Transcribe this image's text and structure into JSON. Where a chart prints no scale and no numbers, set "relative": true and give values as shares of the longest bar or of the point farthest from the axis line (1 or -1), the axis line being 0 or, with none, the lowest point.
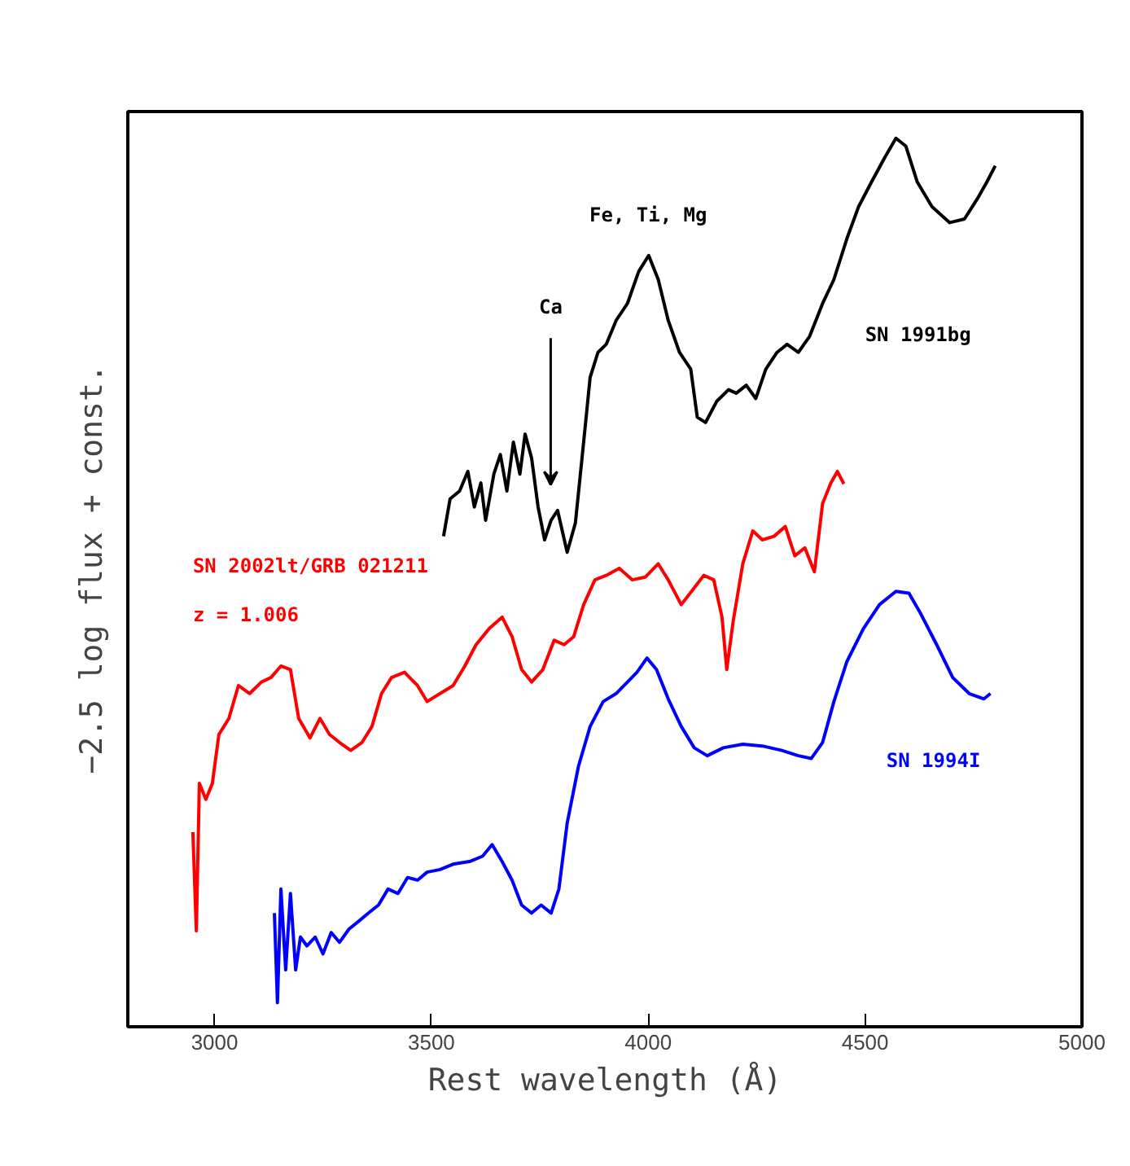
{
  "chart_data": {
    "type": "line",
    "relative": true,
    "xlabel": "Rest wavelength (Å)",
    "ylabel": "−2.5 log flux + const.",
    "xlim": [
      2800,
      5000
    ],
    "xticks": [
      3000,
      3500,
      4000,
      4500,
      5000
    ],
    "grid": false,
    "marker": "none",
    "line_style": "solid",
    "annotations": [
      "Fe, Ti, Mg",
      "Ca",
      "z = 1.006"
    ],
    "series": [
      {
        "name": "SN 1991bg",
        "color": "#000000",
        "x": [
          3528,
          3543,
          3565,
          3584,
          3599,
          3614,
          3625,
          3644,
          3659,
          3674,
          3689,
          3704,
          3716,
          3731,
          3746,
          3761,
          3776,
          3791,
          3813,
          3832,
          3851,
          3866,
          3884,
          3903,
          3926,
          3952,
          3978,
          4001,
          4023,
          4046,
          4072,
          4098,
          4113,
          4132,
          4158,
          4185,
          4203,
          4226,
          4248,
          4271,
          4297,
          4320,
          4346,
          4372,
          4402,
          4428,
          4458,
          4485,
          4515,
          4545,
          4571,
          4594,
          4620,
          4654,
          4695,
          4729,
          4759,
          4781,
          4800
        ],
        "values": [
          0.552,
          0.594,
          0.603,
          0.625,
          0.585,
          0.612,
          0.57,
          0.622,
          0.644,
          0.603,
          0.658,
          0.622,
          0.667,
          0.64,
          0.585,
          0.548,
          0.57,
          0.581,
          0.534,
          0.567,
          0.658,
          0.731,
          0.759,
          0.768,
          0.795,
          0.814,
          0.85,
          0.868,
          0.841,
          0.795,
          0.759,
          0.74,
          0.686,
          0.68,
          0.704,
          0.717,
          0.713,
          0.722,
          0.707,
          0.74,
          0.759,
          0.768,
          0.759,
          0.777,
          0.814,
          0.841,
          0.887,
          0.923,
          0.951,
          0.978,
          1.0,
          0.991,
          0.951,
          0.923,
          0.905,
          0.909,
          0.932,
          0.951,
          0.969
        ]
      },
      {
        "name": "SN 2002lt/GRB 021211",
        "color": "#ff0000",
        "x": [
          2950,
          2958,
          2965,
          2980,
          2995,
          3010,
          3033,
          3055,
          3081,
          3108,
          3130,
          3153,
          3175,
          3194,
          3220,
          3243,
          3265,
          3288,
          3314,
          3340,
          3363,
          3385,
          3408,
          3438,
          3468,
          3490,
          3520,
          3550,
          3577,
          3603,
          3633,
          3663,
          3686,
          3708,
          3731,
          3757,
          3783,
          3806,
          3828,
          3851,
          3877,
          3903,
          3933,
          3963,
          3993,
          4023,
          4046,
          4076,
          4106,
          4128,
          4151,
          4170,
          4181,
          4196,
          4218,
          4241,
          4263,
          4290,
          4316,
          4338,
          4361,
          4383,
          4402,
          4421,
          4436,
          4451
        ],
        "values": [
          0.219,
          0.108,
          0.274,
          0.256,
          0.274,
          0.329,
          0.347,
          0.384,
          0.375,
          0.388,
          0.393,
          0.406,
          0.402,
          0.347,
          0.325,
          0.347,
          0.329,
          0.32,
          0.311,
          0.32,
          0.338,
          0.375,
          0.393,
          0.399,
          0.384,
          0.366,
          0.375,
          0.384,
          0.406,
          0.43,
          0.448,
          0.461,
          0.439,
          0.402,
          0.388,
          0.402,
          0.435,
          0.43,
          0.439,
          0.475,
          0.503,
          0.508,
          0.516,
          0.503,
          0.506,
          0.521,
          0.503,
          0.475,
          0.494,
          0.508,
          0.503,
          0.461,
          0.402,
          0.457,
          0.521,
          0.558,
          0.548,
          0.552,
          0.563,
          0.53,
          0.539,
          0.512,
          0.589,
          0.612,
          0.625,
          0.611
        ]
      },
      {
        "name": "SN 1994I",
        "color": "#0000ff",
        "x": [
          3138,
          3145,
          3153,
          3164,
          3175,
          3187,
          3198,
          3213,
          3232,
          3250,
          3269,
          3288,
          3310,
          3333,
          3355,
          3378,
          3400,
          3423,
          3445,
          3468,
          3490,
          3520,
          3550,
          3588,
          3618,
          3640,
          3663,
          3686,
          3708,
          3731,
          3753,
          3776,
          3794,
          3813,
          3839,
          3866,
          3896,
          3926,
          3952,
          3974,
          3997,
          4019,
          4046,
          4076,
          4106,
          4136,
          4173,
          4218,
          4263,
          4308,
          4346,
          4376,
          4402,
          4428,
          4458,
          4496,
          4533,
          4571,
          4601,
          4627,
          4665,
          4702,
          4740,
          4774,
          4789
        ],
        "values": [
          0.128,
          0.027,
          0.155,
          0.064,
          0.15,
          0.064,
          0.101,
          0.091,
          0.101,
          0.082,
          0.106,
          0.095,
          0.11,
          0.119,
          0.128,
          0.137,
          0.155,
          0.15,
          0.168,
          0.165,
          0.174,
          0.177,
          0.183,
          0.186,
          0.192,
          0.205,
          0.186,
          0.165,
          0.137,
          0.128,
          0.137,
          0.128,
          0.155,
          0.229,
          0.293,
          0.338,
          0.366,
          0.375,
          0.388,
          0.399,
          0.415,
          0.402,
          0.369,
          0.338,
          0.314,
          0.305,
          0.314,
          0.318,
          0.316,
          0.311,
          0.305,
          0.302,
          0.32,
          0.366,
          0.411,
          0.448,
          0.475,
          0.49,
          0.488,
          0.466,
          0.43,
          0.393,
          0.375,
          0.369,
          0.375
        ]
      }
    ]
  }
}
